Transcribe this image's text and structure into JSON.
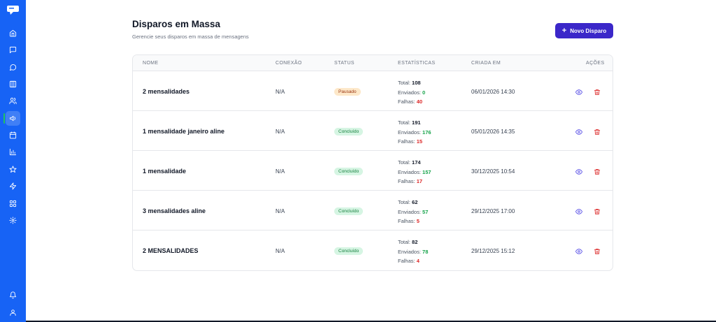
{
  "header": {
    "title": "Disparos em Massa",
    "subtitle": "Gerencie seus disparos em massa de mensagens",
    "new_button_label": "Novo Disparo"
  },
  "sidebar": {
    "items": [
      {
        "icon": "home-icon"
      },
      {
        "icon": "message-square-icon"
      },
      {
        "icon": "message-circle-icon"
      },
      {
        "icon": "kanban-icon"
      },
      {
        "icon": "users-icon"
      },
      {
        "icon": "megaphone-icon",
        "active": true
      },
      {
        "icon": "calendar-icon"
      },
      {
        "icon": "bar-chart-icon"
      },
      {
        "icon": "star-icon"
      },
      {
        "icon": "zap-icon"
      },
      {
        "icon": "grid-icon"
      },
      {
        "icon": "gear-icon"
      }
    ],
    "bottom_items": [
      {
        "icon": "bell-icon"
      },
      {
        "icon": "user-icon"
      }
    ]
  },
  "table": {
    "columns": [
      "NOME",
      "CONEXÃO",
      "STATUS",
      "ESTATÍSTICAS",
      "CRIADA EM",
      "AÇÕES"
    ],
    "stat_labels": {
      "total": "Total:",
      "sent": "Enviados:",
      "failed": "Falhas:"
    },
    "rows": [
      {
        "name": "2 mensalidades",
        "connection": "N/A",
        "status": "Pausado",
        "status_kind": "paused",
        "total": "108",
        "sent": "0",
        "failed": "40",
        "created": "06/01/2026 14:30"
      },
      {
        "name": "1 mensalidade janeiro aline",
        "connection": "N/A",
        "status": "Concluído",
        "status_kind": "done",
        "total": "191",
        "sent": "176",
        "failed": "15",
        "created": "05/01/2026 14:35"
      },
      {
        "name": "1 mensalidade",
        "connection": "N/A",
        "status": "Concluído",
        "status_kind": "done",
        "total": "174",
        "sent": "157",
        "failed": "17",
        "created": "30/12/2025 10:54"
      },
      {
        "name": "3 mensalidades aline",
        "connection": "N/A",
        "status": "Concluído",
        "status_kind": "done",
        "total": "62",
        "sent": "57",
        "failed": "5",
        "created": "29/12/2025 17:00"
      },
      {
        "name": "2 MENSALIDADES",
        "connection": "N/A",
        "status": "Concluído",
        "status_kind": "done",
        "total": "82",
        "sent": "78",
        "failed": "4",
        "created": "29/12/2025 15:12"
      }
    ]
  },
  "colors": {
    "sidebar": "#1763f5",
    "primary_button": "#3b27c9",
    "success": "#16a34a",
    "danger": "#dc2626"
  }
}
